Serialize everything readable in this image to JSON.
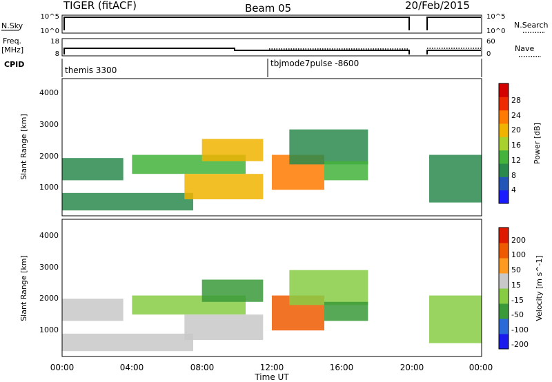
{
  "header": {
    "radar": "TIGER (fitACF)",
    "beam": "Beam 05",
    "date": "20/Feb/2015"
  },
  "sky_panel": {
    "left_label": "N.Sky",
    "right_label": "N.Search",
    "left_ticks": [
      "10^5",
      "10^0"
    ],
    "right_ticks": [
      "10^5",
      "10^0"
    ]
  },
  "freq_panel": {
    "left_label_1": "Freq.",
    "left_label_2": "[MHz]",
    "right_label": "Nave",
    "left_ticks": [
      "18",
      "8"
    ],
    "right_ticks": [
      "60",
      "0"
    ]
  },
  "cpid_panel": {
    "label": "CPID",
    "segments": [
      {
        "name": "themis 3300",
        "start_hour": 0
      },
      {
        "name": "tbjmode7pulse -8600",
        "start_hour": 12
      }
    ]
  },
  "colors": {
    "power": [
      "#1b1bff",
      "#2355b8",
      "#2a8a4e",
      "#44b33c",
      "#a8d12e",
      "#f0b400",
      "#ff7a00",
      "#ee2a00",
      "#d40000"
    ],
    "velocity": [
      "#1a1aee",
      "#2a6ad8",
      "#3a9a3a",
      "#88cc44",
      "#c8c8c8",
      "#ff9a20",
      "#ee5a00",
      "#dd1a00"
    ]
  },
  "chart_data": [
    {
      "type": "heatmap",
      "name": "Power",
      "xlabel": "",
      "ylabel": "Slant Range [km]",
      "xlim": [
        0,
        24
      ],
      "ylim": [
        180,
        4500
      ],
      "yticks": [
        "4000",
        "3000",
        "2000",
        "1000"
      ],
      "colorbar": {
        "label": "Power [dB]",
        "ticks": [
          "28",
          "24",
          "20",
          "16",
          "12",
          "8",
          "4"
        ],
        "range": [
          0,
          32
        ]
      },
      "echo_bands": [
        {
          "t0": 0.0,
          "t1": 7.5,
          "r0": 350,
          "r1": 900,
          "value": 10
        },
        {
          "t0": 0.0,
          "t1": 3.5,
          "r0": 1300,
          "r1": 2000,
          "value": 10
        },
        {
          "t0": 4.0,
          "t1": 10.5,
          "r0": 1500,
          "r1": 2100,
          "value": 14
        },
        {
          "t0": 7.0,
          "t1": 11.5,
          "r0": 700,
          "r1": 1500,
          "value": 18
        },
        {
          "t0": 8.0,
          "t1": 11.5,
          "r0": 1900,
          "r1": 2600,
          "value": 20
        },
        {
          "t0": 12.0,
          "t1": 15.0,
          "r0": 1000,
          "r1": 2100,
          "value": 24
        },
        {
          "t0": 13.0,
          "t1": 17.5,
          "r0": 1800,
          "r1": 2900,
          "value": 8
        },
        {
          "t0": 15.0,
          "t1": 17.5,
          "r0": 1300,
          "r1": 1900,
          "value": 12
        },
        {
          "t0": 21.0,
          "t1": 24.0,
          "r0": 600,
          "r1": 2100,
          "value": 9
        }
      ]
    },
    {
      "type": "heatmap",
      "name": "Velocity",
      "xlabel": "Time UT",
      "ylabel": "Slant Range [km]",
      "xlim": [
        0,
        24
      ],
      "ylim": [
        180,
        4500
      ],
      "xticks": [
        "00:00",
        "04:00",
        "08:00",
        "12:00",
        "16:00",
        "20:00",
        "00:00"
      ],
      "yticks": [
        "4000",
        "3000",
        "2000",
        "1000"
      ],
      "colorbar": {
        "label": "Velocity [m s^-1]",
        "ticks": [
          "200",
          "100",
          "50",
          "15",
          "-15",
          "-50",
          "-100",
          "-200"
        ],
        "range": [
          -250,
          250
        ]
      },
      "echo_bands": [
        {
          "t0": 0.0,
          "t1": 7.5,
          "r0": 350,
          "r1": 900,
          "value": 0
        },
        {
          "t0": 0.0,
          "t1": 3.5,
          "r0": 1300,
          "r1": 2000,
          "value": 0
        },
        {
          "t0": 4.0,
          "t1": 10.5,
          "r0": 1500,
          "r1": 2100,
          "value": -5
        },
        {
          "t0": 7.0,
          "t1": 11.5,
          "r0": 700,
          "r1": 1500,
          "value": 5
        },
        {
          "t0": 8.0,
          "t1": 11.5,
          "r0": 1900,
          "r1": 2600,
          "value": -80
        },
        {
          "t0": 12.0,
          "t1": 15.0,
          "r0": 1000,
          "r1": 2100,
          "value": 180
        },
        {
          "t0": 13.0,
          "t1": 17.5,
          "r0": 1800,
          "r1": 2900,
          "value": -60
        },
        {
          "t0": 15.0,
          "t1": 17.5,
          "r0": 1300,
          "r1": 1900,
          "value": -90
        },
        {
          "t0": 21.0,
          "t1": 24.0,
          "r0": 600,
          "r1": 2100,
          "value": -10
        }
      ]
    }
  ]
}
